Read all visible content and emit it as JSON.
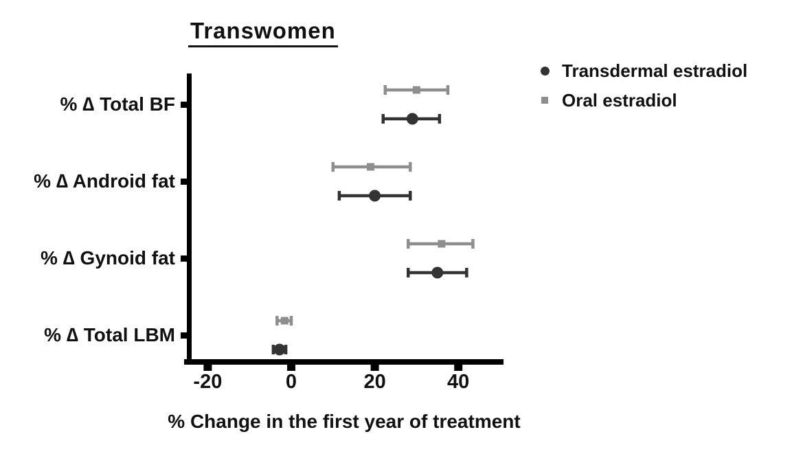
{
  "chart_data": {
    "type": "scatter",
    "subtype": "horizontal-dot-plot-with-error-bars",
    "title": "Transwomen",
    "xlabel": "% Change in the first year of treatment",
    "ylabel": "",
    "categories": [
      "% ∆ Total BF",
      "% ∆ Android fat",
      "% ∆ Gynoid fat",
      "% ∆ Total LBM"
    ],
    "x_ticks": [
      -20,
      0,
      20,
      40
    ],
    "xlim": [
      -26,
      51
    ],
    "grid": false,
    "legend_position": "top-right",
    "axis_color": "#000000",
    "series": [
      {
        "name": "Transdermal estradiol",
        "marker": "circle",
        "color": "#333333",
        "values": [
          29,
          20,
          35,
          -2.8
        ],
        "lower": [
          22,
          11.5,
          28,
          -4.3
        ],
        "upper": [
          35.5,
          28.5,
          42,
          -1.3
        ]
      },
      {
        "name": "Oral estradiol",
        "marker": "square",
        "color": "#8e8e8e",
        "values": [
          30,
          19,
          36,
          -1.6
        ],
        "lower": [
          22.5,
          10,
          28,
          -3.4
        ],
        "upper": [
          37.5,
          28.5,
          43.5,
          0
        ]
      }
    ]
  }
}
